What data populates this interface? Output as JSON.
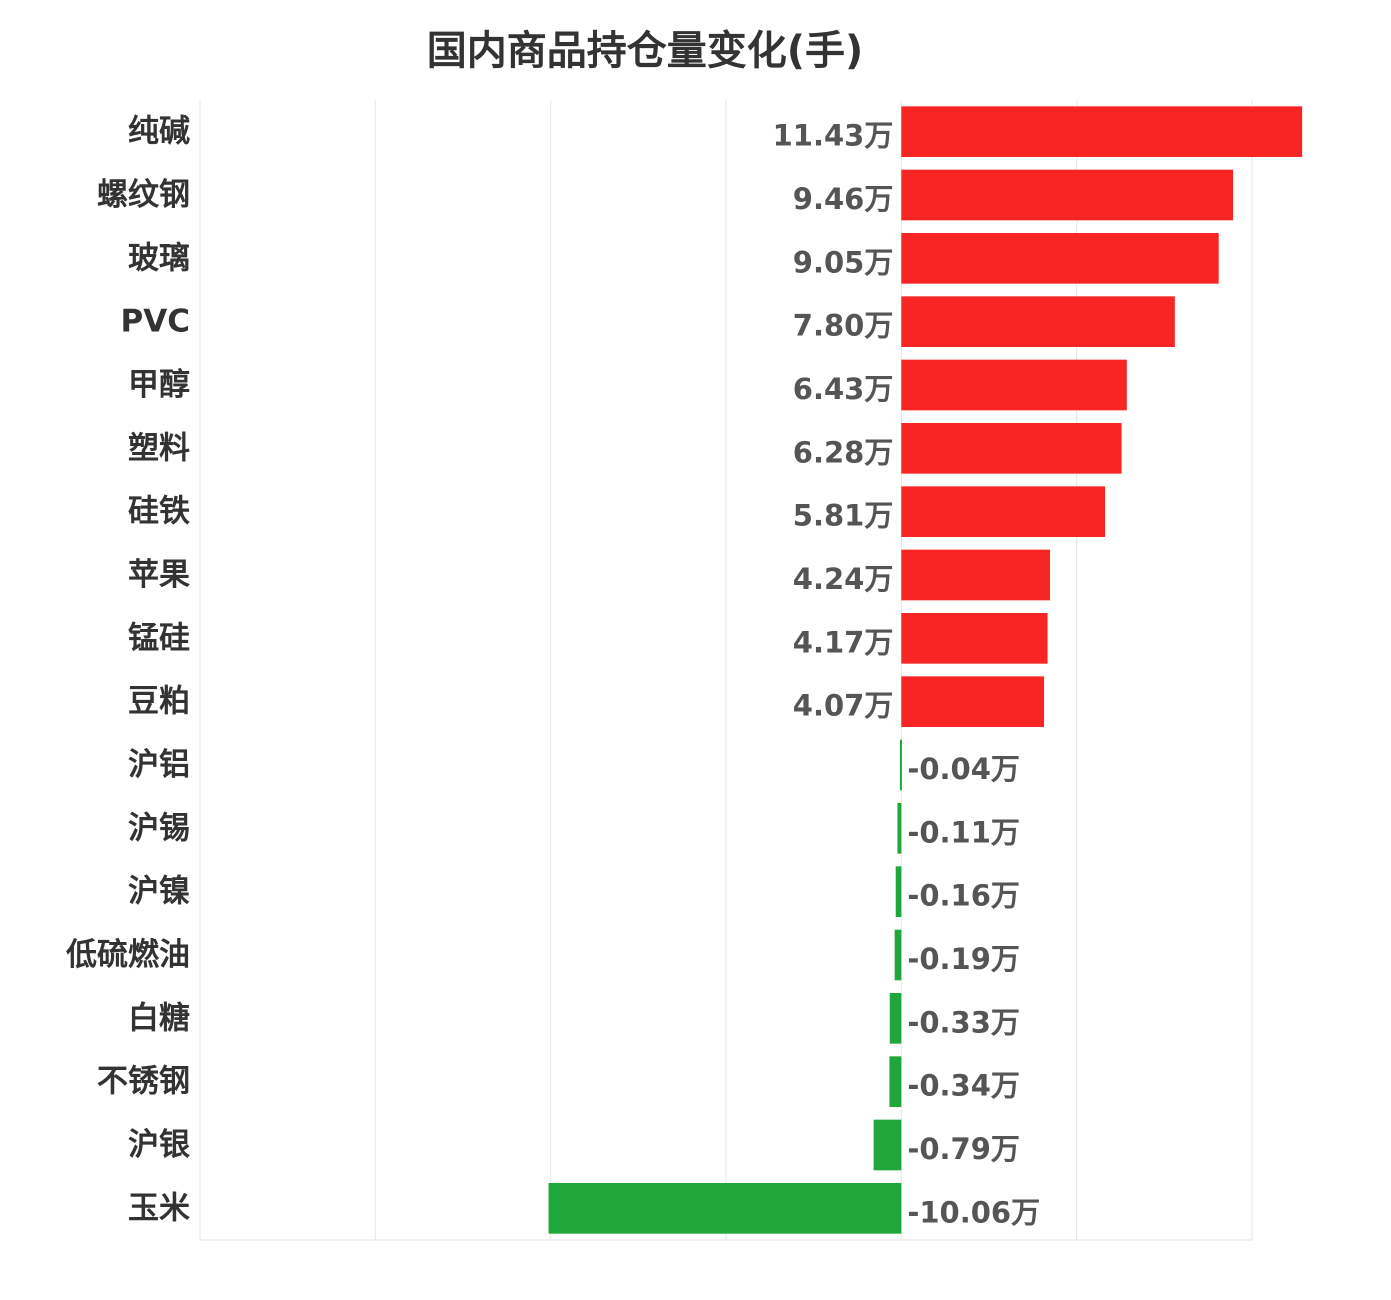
{
  "chart_data": {
    "type": "bar",
    "orientation": "horizontal",
    "title": "国内商品持仓量变化(手)",
    "xlabel": "",
    "ylabel": "",
    "xlim": [
      -20,
      10
    ],
    "grid": true,
    "legend": "none",
    "positive_color": "#f82525",
    "negative_color": "#20a73a",
    "categories": [
      "纯碱",
      "螺纹钢",
      "玻璃",
      "PVC",
      "甲醇",
      "塑料",
      "硅铁",
      "苹果",
      "锰硅",
      "豆粕",
      "沪铝",
      "沪锡",
      "沪镍",
      "低硫燃油",
      "白糖",
      "不锈钢",
      "沪银",
      "玉米"
    ],
    "values": [
      11.43,
      9.46,
      9.05,
      7.8,
      6.43,
      6.28,
      5.81,
      4.24,
      4.17,
      4.07,
      -0.04,
      -0.11,
      -0.16,
      -0.19,
      -0.33,
      -0.34,
      -0.79,
      -10.06
    ],
    "value_labels": [
      "11.43万",
      "9.46万",
      "9.05万",
      "7.80万",
      "6.43万",
      "6.28万",
      "5.81万",
      "4.24万",
      "4.17万",
      "4.07万",
      "-0.04万",
      "-0.11万",
      "-0.16万",
      "-0.19万",
      "-0.33万",
      "-0.34万",
      "-0.79万",
      "-10.06万"
    ]
  }
}
